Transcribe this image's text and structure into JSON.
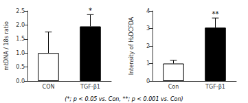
{
  "chart_data": [
    {
      "type": "bar",
      "categories": [
        "CON",
        "TGF-β1"
      ],
      "values": [
        1.0,
        1.95
      ],
      "errors": [
        0.75,
        0.42
      ],
      "colors": [
        "white",
        "black"
      ],
      "significance": [
        null,
        "*"
      ],
      "ylabel": "mtDNA / 18s ratio",
      "ylim": [
        0,
        2.5
      ],
      "yticks": [
        {
          "value": 0,
          "label": "0.0"
        },
        0.5,
        {
          "value": 1,
          "label": "1.0"
        },
        1.5,
        {
          "value": 2,
          "label": "2.0"
        },
        2.5
      ],
      "grid": false
    },
    {
      "type": "bar",
      "categories": [
        "Con",
        "TGF-β1"
      ],
      "values": [
        1.0,
        3.05
      ],
      "errors": [
        0.18,
        0.55
      ],
      "colors": [
        "white",
        "black"
      ],
      "significance": [
        null,
        "**"
      ],
      "ylabel": "Intensity of H₂DCFDA",
      "ylim": [
        0,
        4
      ],
      "yticks": [
        0,
        1,
        2,
        3,
        4
      ],
      "grid": false,
      "footnote": "(*; p < 0.05 vs. Con, **; p < 0.001 vs. Con)"
    }
  ]
}
